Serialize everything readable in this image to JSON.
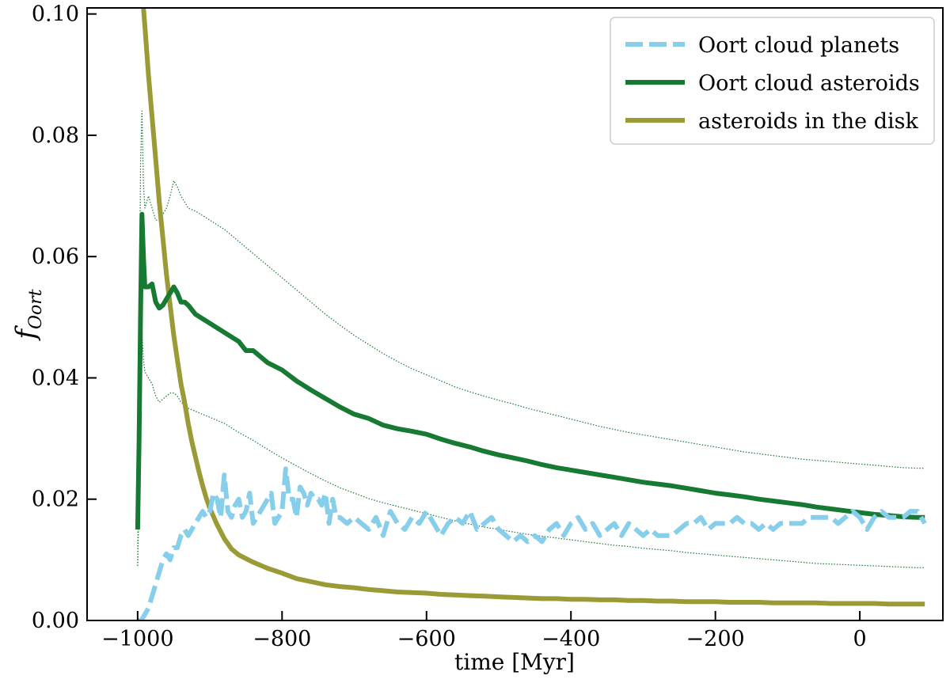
{
  "chart_data": {
    "type": "line",
    "title": "",
    "xlabel": "time [Myr]",
    "ylabel": "fOort",
    "ylabel_main": "f",
    "ylabel_sub": "Oort",
    "xlim": [
      -1070,
      115
    ],
    "ylim": [
      0,
      0.101
    ],
    "xticks": [
      -1000,
      -800,
      -600,
      -400,
      -200,
      0
    ],
    "xtick_labels": [
      "−1000",
      "−800",
      "−600",
      "−400",
      "−200",
      "0"
    ],
    "yticks": [
      0.0,
      0.02,
      0.04,
      0.06,
      0.08,
      0.1
    ],
    "ytick_labels": [
      "0.00",
      "0.02",
      "0.04",
      "0.06",
      "0.08",
      "0.10"
    ],
    "grid": false,
    "legend_position": "top-right",
    "colors": {
      "planets": "#87ceeb",
      "asteroids_oort": "#177a33",
      "asteroids_disk": "#9a9a36"
    },
    "series": [
      {
        "name": "Oort cloud planets",
        "key": "planets",
        "style": "dashed",
        "x": [
          -1000,
          -995,
          -990,
          -985,
          -980,
          -975,
          -970,
          -965,
          -960,
          -955,
          -950,
          -945,
          -940,
          -935,
          -930,
          -925,
          -920,
          -915,
          -910,
          -905,
          -900,
          -895,
          -890,
          -885,
          -880,
          -875,
          -870,
          -865,
          -860,
          -855,
          -850,
          -845,
          -840,
          -835,
          -830,
          -825,
          -820,
          -815,
          -810,
          -805,
          -800,
          -795,
          -790,
          -785,
          -780,
          -775,
          -770,
          -765,
          -760,
          -755,
          -750,
          -745,
          -740,
          -735,
          -730,
          -725,
          -720,
          -710,
          -700,
          -690,
          -680,
          -670,
          -660,
          -650,
          -640,
          -630,
          -620,
          -610,
          -600,
          -590,
          -580,
          -570,
          -560,
          -550,
          -540,
          -530,
          -520,
          -510,
          -500,
          -490,
          -480,
          -470,
          -460,
          -450,
          -440,
          -430,
          -420,
          -410,
          -400,
          -390,
          -380,
          -370,
          -360,
          -350,
          -340,
          -330,
          -320,
          -310,
          -300,
          -290,
          -280,
          -270,
          -260,
          -250,
          -240,
          -230,
          -220,
          -210,
          -200,
          -190,
          -180,
          -170,
          -160,
          -150,
          -140,
          -130,
          -120,
          -110,
          -100,
          -90,
          -80,
          -70,
          -60,
          -50,
          -40,
          -30,
          -20,
          -10,
          0,
          10,
          20,
          30,
          40,
          50,
          60,
          70,
          80,
          90
        ],
        "values": [
          0.0,
          0.0,
          0.001,
          0.002,
          0.004,
          0.006,
          0.008,
          0.01,
          0.011,
          0.01,
          0.012,
          0.012,
          0.014,
          0.015,
          0.014,
          0.015,
          0.016,
          0.017,
          0.018,
          0.017,
          0.018,
          0.021,
          0.02,
          0.017,
          0.024,
          0.018,
          0.017,
          0.019,
          0.02,
          0.017,
          0.018,
          0.021,
          0.016,
          0.017,
          0.018,
          0.019,
          0.02,
          0.021,
          0.016,
          0.017,
          0.018,
          0.025,
          0.02,
          0.02,
          0.017,
          0.022,
          0.021,
          0.019,
          0.021,
          0.02,
          0.02,
          0.019,
          0.021,
          0.016,
          0.02,
          0.017,
          0.017,
          0.016,
          0.017,
          0.016,
          0.015,
          0.017,
          0.014,
          0.018,
          0.016,
          0.015,
          0.017,
          0.016,
          0.018,
          0.016,
          0.014,
          0.016,
          0.017,
          0.016,
          0.018,
          0.015,
          0.016,
          0.017,
          0.015,
          0.014,
          0.013,
          0.014,
          0.013,
          0.014,
          0.013,
          0.015,
          0.016,
          0.014,
          0.016,
          0.017,
          0.015,
          0.016,
          0.014,
          0.015,
          0.016,
          0.014,
          0.016,
          0.015,
          0.014,
          0.015,
          0.014,
          0.014,
          0.014,
          0.015,
          0.016,
          0.016,
          0.017,
          0.015,
          0.016,
          0.016,
          0.016,
          0.017,
          0.016,
          0.016,
          0.015,
          0.016,
          0.015,
          0.016,
          0.016,
          0.016,
          0.016,
          0.017,
          0.017,
          0.017,
          0.017,
          0.016,
          0.017,
          0.018,
          0.017,
          0.015,
          0.017,
          0.018,
          0.017,
          0.017,
          0.017,
          0.018,
          0.018,
          0.016
        ]
      },
      {
        "name": "Oort cloud asteroids",
        "key": "asteroids_oort",
        "style": "solid",
        "x": [
          -1000,
          -998,
          -996,
          -994,
          -992,
          -990,
          -985,
          -980,
          -975,
          -970,
          -965,
          -960,
          -955,
          -950,
          -945,
          -940,
          -935,
          -930,
          -920,
          -900,
          -880,
          -860,
          -850,
          -840,
          -820,
          -800,
          -780,
          -760,
          -740,
          -720,
          -700,
          -680,
          -660,
          -640,
          -620,
          -600,
          -580,
          -560,
          -540,
          -520,
          -500,
          -480,
          -460,
          -440,
          -420,
          -400,
          -380,
          -360,
          -340,
          -320,
          -300,
          -280,
          -260,
          -240,
          -220,
          -200,
          -180,
          -160,
          -140,
          -120,
          -100,
          -80,
          -60,
          -40,
          -20,
          0,
          20,
          40,
          60,
          80,
          90
        ],
        "values": [
          0.015,
          0.03,
          0.05,
          0.067,
          0.06,
          0.055,
          0.055,
          0.0555,
          0.0525,
          0.0515,
          0.052,
          0.053,
          0.054,
          0.055,
          0.054,
          0.0525,
          0.0525,
          0.052,
          0.0505,
          0.049,
          0.0475,
          0.046,
          0.0445,
          0.0445,
          0.0425,
          0.0413,
          0.0395,
          0.038,
          0.0366,
          0.0352,
          0.034,
          0.0333,
          0.0322,
          0.0316,
          0.0312,
          0.0307,
          0.0299,
          0.0292,
          0.0286,
          0.0279,
          0.0273,
          0.0268,
          0.0263,
          0.0257,
          0.0252,
          0.0248,
          0.0244,
          0.024,
          0.0236,
          0.0232,
          0.0228,
          0.0225,
          0.0222,
          0.0218,
          0.0214,
          0.021,
          0.0207,
          0.0204,
          0.02,
          0.0197,
          0.0194,
          0.0191,
          0.0187,
          0.0184,
          0.0181,
          0.0178,
          0.0175,
          0.0173,
          0.0171,
          0.017,
          0.017
        ]
      },
      {
        "name": "asteroids in the disk",
        "key": "asteroids_disk",
        "style": "solid",
        "x": [
          -992,
          -990,
          -985,
          -980,
          -975,
          -970,
          -965,
          -960,
          -955,
          -950,
          -945,
          -940,
          -935,
          -930,
          -925,
          -920,
          -915,
          -910,
          -905,
          -900,
          -890,
          -880,
          -870,
          -860,
          -850,
          -840,
          -820,
          -800,
          -780,
          -760,
          -740,
          -720,
          -700,
          -680,
          -660,
          -640,
          -620,
          -600,
          -580,
          -560,
          -540,
          -520,
          -500,
          -480,
          -460,
          -440,
          -420,
          -400,
          -380,
          -360,
          -340,
          -320,
          -300,
          -280,
          -260,
          -240,
          -220,
          -200,
          -180,
          -160,
          -140,
          -120,
          -100,
          -80,
          -60,
          -40,
          -20,
          0,
          20,
          40,
          60,
          80,
          90
        ],
        "values": [
          0.101,
          0.098,
          0.09,
          0.083,
          0.076,
          0.069,
          0.063,
          0.057,
          0.052,
          0.047,
          0.043,
          0.039,
          0.036,
          0.0325,
          0.0295,
          0.027,
          0.0245,
          0.0222,
          0.0202,
          0.0185,
          0.0158,
          0.0135,
          0.0118,
          0.0108,
          0.0102,
          0.0096,
          0.0086,
          0.0078,
          0.0069,
          0.0064,
          0.0059,
          0.0056,
          0.0054,
          0.0051,
          0.0049,
          0.0047,
          0.0046,
          0.0045,
          0.0043,
          0.0042,
          0.0041,
          0.004,
          0.0039,
          0.0038,
          0.0037,
          0.0036,
          0.0036,
          0.0035,
          0.0035,
          0.0034,
          0.0034,
          0.0033,
          0.0033,
          0.0032,
          0.0032,
          0.0031,
          0.0031,
          0.0031,
          0.003,
          0.003,
          0.003,
          0.0029,
          0.0029,
          0.0029,
          0.0029,
          0.0028,
          0.0028,
          0.0028,
          0.0028,
          0.0027,
          0.0027,
          0.0027,
          0.0027
        ]
      },
      {
        "name": "Oort cloud asteroids upper band",
        "key": "asteroids_oort",
        "style": "dotted",
        "in_legend": false,
        "x": [
          -1000,
          -998,
          -996,
          -994,
          -992,
          -990,
          -985,
          -980,
          -975,
          -970,
          -965,
          -960,
          -955,
          -950,
          -945,
          -940,
          -935,
          -930,
          -920,
          -900,
          -880,
          -860,
          -840,
          -820,
          -800,
          -780,
          -760,
          -740,
          -720,
          -700,
          -680,
          -660,
          -640,
          -620,
          -600,
          -580,
          -560,
          -540,
          -520,
          -500,
          -480,
          -460,
          -440,
          -420,
          -400,
          -380,
          -360,
          -340,
          -320,
          -300,
          -280,
          -260,
          -240,
          -220,
          -200,
          -180,
          -160,
          -140,
          -120,
          -100,
          -80,
          -60,
          -40,
          -20,
          0,
          20,
          40,
          60,
          80,
          90
        ],
        "values": [
          0.009,
          0.04,
          0.075,
          0.084,
          0.072,
          0.068,
          0.07,
          0.068,
          0.066,
          0.066,
          0.067,
          0.068,
          0.07,
          0.0725,
          0.0715,
          0.07,
          0.069,
          0.068,
          0.0675,
          0.066,
          0.0645,
          0.0625,
          0.0605,
          0.0585,
          0.0565,
          0.0545,
          0.0525,
          0.0505,
          0.0487,
          0.047,
          0.0455,
          0.044,
          0.0427,
          0.0415,
          0.0405,
          0.0395,
          0.0385,
          0.0377,
          0.037,
          0.0363,
          0.0357,
          0.035,
          0.0344,
          0.0338,
          0.0332,
          0.0326,
          0.032,
          0.0315,
          0.031,
          0.0306,
          0.0302,
          0.0298,
          0.0294,
          0.029,
          0.0286,
          0.0282,
          0.0278,
          0.0275,
          0.0272,
          0.0269,
          0.0266,
          0.0264,
          0.0262,
          0.026,
          0.0258,
          0.0256,
          0.0254,
          0.0252,
          0.0251,
          0.0251
        ]
      },
      {
        "name": "Oort cloud asteroids lower band",
        "key": "asteroids_oort",
        "style": "dotted",
        "in_legend": false,
        "x": [
          -1000,
          -998,
          -996,
          -994,
          -992,
          -990,
          -985,
          -980,
          -975,
          -970,
          -965,
          -960,
          -955,
          -950,
          -945,
          -940,
          -935,
          -930,
          -920,
          -900,
          -880,
          -860,
          -840,
          -820,
          -800,
          -780,
          -760,
          -740,
          -720,
          -700,
          -680,
          -660,
          -640,
          -620,
          -600,
          -580,
          -560,
          -540,
          -520,
          -500,
          -480,
          -460,
          -440,
          -420,
          -400,
          -380,
          -360,
          -340,
          -320,
          -300,
          -280,
          -260,
          -240,
          -220,
          -200,
          -180,
          -160,
          -140,
          -120,
          -100,
          -80,
          -60,
          -40,
          -20,
          0,
          20,
          40,
          60,
          80,
          90
        ],
        "values": [
          0.009,
          0.02,
          0.042,
          0.048,
          0.043,
          0.041,
          0.04,
          0.039,
          0.037,
          0.036,
          0.0365,
          0.037,
          0.0375,
          0.0375,
          0.037,
          0.036,
          0.0355,
          0.035,
          0.0345,
          0.0335,
          0.0325,
          0.031,
          0.0297,
          0.0282,
          0.0268,
          0.0255,
          0.0242,
          0.023,
          0.0219,
          0.021,
          0.0201,
          0.0194,
          0.0188,
          0.0182,
          0.0176,
          0.017,
          0.0164,
          0.0159,
          0.0154,
          0.015,
          0.0146,
          0.0142,
          0.0139,
          0.0136,
          0.0133,
          0.013,
          0.0127,
          0.0124,
          0.0122,
          0.0119,
          0.0117,
          0.0115,
          0.0112,
          0.011,
          0.0108,
          0.0106,
          0.0104,
          0.0102,
          0.01,
          0.0098,
          0.0096,
          0.0094,
          0.0093,
          0.0092,
          0.0091,
          0.009,
          0.0089,
          0.0088,
          0.0087,
          0.0087
        ]
      }
    ]
  }
}
